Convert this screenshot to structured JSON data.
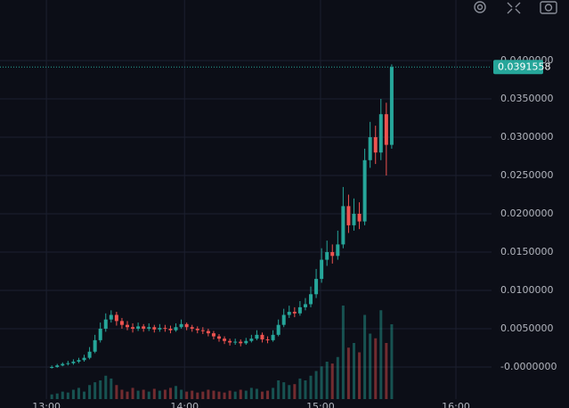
{
  "chart_data": {
    "type": "candlestick",
    "open": [
      -0.0001,
      0.0,
      0.0002,
      0.0004,
      0.0005,
      0.0007,
      0.0009,
      0.0012,
      0.002,
      0.0035,
      0.005,
      0.0062,
      0.0068,
      0.006,
      0.0055,
      0.0052,
      0.005,
      0.0053,
      0.005,
      0.0052,
      0.0049,
      0.0051,
      0.005,
      0.0048,
      0.0052,
      0.0056,
      0.0052,
      0.005,
      0.0048,
      0.0047,
      0.0044,
      0.004,
      0.0037,
      0.0034,
      0.0032,
      0.0033,
      0.0031,
      0.0034,
      0.0037,
      0.0042,
      0.0036,
      0.0035,
      0.0042,
      0.0055,
      0.0068,
      0.0072,
      0.007,
      0.0078,
      0.0082,
      0.0095,
      0.0115,
      0.014,
      0.015,
      0.0145,
      0.016,
      0.021,
      0.0185,
      0.02,
      0.019,
      0.027,
      0.03,
      0.028,
      0.033,
      0.029
    ],
    "high": [
      0.0002,
      0.0004,
      0.0006,
      0.0008,
      0.001,
      0.0012,
      0.0016,
      0.0026,
      0.0042,
      0.0058,
      0.007,
      0.0074,
      0.0072,
      0.0064,
      0.006,
      0.0057,
      0.0058,
      0.0056,
      0.0057,
      0.0055,
      0.0056,
      0.0055,
      0.0054,
      0.0057,
      0.0062,
      0.0058,
      0.0055,
      0.0053,
      0.0052,
      0.005,
      0.0047,
      0.0043,
      0.004,
      0.0037,
      0.0037,
      0.0036,
      0.0038,
      0.0042,
      0.0048,
      0.0045,
      0.004,
      0.0048,
      0.0062,
      0.0076,
      0.008,
      0.0078,
      0.0086,
      0.009,
      0.0105,
      0.0128,
      0.0155,
      0.0165,
      0.016,
      0.0178,
      0.0235,
      0.0225,
      0.022,
      0.0215,
      0.0285,
      0.032,
      0.0315,
      0.035,
      0.0345,
      0.0395
    ],
    "low": [
      -0.0002,
      -0.0001,
      0.0001,
      0.0002,
      0.0003,
      0.0005,
      0.0007,
      0.001,
      0.0018,
      0.0032,
      0.0046,
      0.0058,
      0.0054,
      0.005,
      0.0048,
      0.0045,
      0.0047,
      0.0046,
      0.0047,
      0.0045,
      0.0046,
      0.0046,
      0.0044,
      0.0046,
      0.005,
      0.0048,
      0.0046,
      0.0044,
      0.0043,
      0.004,
      0.0036,
      0.0033,
      0.003,
      0.0028,
      0.0029,
      0.0027,
      0.0029,
      0.0032,
      0.0035,
      0.0032,
      0.0031,
      0.0033,
      0.004,
      0.0052,
      0.0064,
      0.0065,
      0.0067,
      0.0074,
      0.0078,
      0.009,
      0.011,
      0.0132,
      0.0135,
      0.014,
      0.0155,
      0.0175,
      0.0178,
      0.018,
      0.0185,
      0.026,
      0.0265,
      0.027,
      0.025,
      0.0285
    ],
    "close": [
      0.0,
      0.0002,
      0.0004,
      0.0005,
      0.0007,
      0.0009,
      0.0012,
      0.002,
      0.0035,
      0.005,
      0.0062,
      0.0068,
      0.006,
      0.0055,
      0.0052,
      0.005,
      0.0053,
      0.005,
      0.0052,
      0.0049,
      0.0051,
      0.005,
      0.0048,
      0.0052,
      0.0056,
      0.0052,
      0.005,
      0.0048,
      0.0047,
      0.0044,
      0.004,
      0.0037,
      0.0034,
      0.0032,
      0.0033,
      0.0031,
      0.0034,
      0.0037,
      0.0042,
      0.0036,
      0.0035,
      0.0042,
      0.0055,
      0.0068,
      0.0072,
      0.007,
      0.0078,
      0.0082,
      0.0095,
      0.0115,
      0.014,
      0.015,
      0.0145,
      0.016,
      0.021,
      0.0185,
      0.02,
      0.019,
      0.027,
      0.03,
      0.028,
      0.033,
      0.029,
      0.0391558
    ],
    "volume": [
      5,
      6,
      8,
      7,
      10,
      12,
      8,
      15,
      18,
      20,
      25,
      22,
      15,
      10,
      8,
      12,
      9,
      10,
      8,
      11,
      9,
      10,
      12,
      14,
      10,
      8,
      9,
      7,
      8,
      10,
      9,
      8,
      7,
      9,
      8,
      10,
      9,
      12,
      11,
      8,
      9,
      12,
      20,
      18,
      15,
      16,
      22,
      20,
      25,
      30,
      35,
      40,
      38,
      45,
      100,
      55,
      60,
      50,
      90,
      70,
      65,
      95,
      60,
      80
    ],
    "up_color": "#26a69a",
    "down_color": "#ef5350",
    "xlim": [
      -9.6,
      81.5
    ],
    "xticks": [
      {
        "value": -1,
        "label": "13:00"
      },
      {
        "value": 24.6,
        "label": "14:00"
      },
      {
        "value": 49.8,
        "label": "15:00"
      },
      {
        "value": 74.9,
        "label": "16:00"
      }
    ],
    "ylim": [
      -0.00419,
      0.04791
    ],
    "yticks": [
      {
        "value": 0,
        "label": "-0.0000000"
      },
      {
        "value": 0.005,
        "label": "0.0050000"
      },
      {
        "value": 0.01,
        "label": "0.0100000"
      },
      {
        "value": 0.015,
        "label": "0.0150000"
      },
      {
        "value": 0.02,
        "label": "0.0200000"
      },
      {
        "value": 0.025,
        "label": "0.0250000"
      },
      {
        "value": 0.03,
        "label": "0.0300000"
      },
      {
        "value": 0.035,
        "label": "0.0350000"
      },
      {
        "value": 0.04,
        "label": "0.0400000"
      }
    ],
    "grid": true
  }
}
